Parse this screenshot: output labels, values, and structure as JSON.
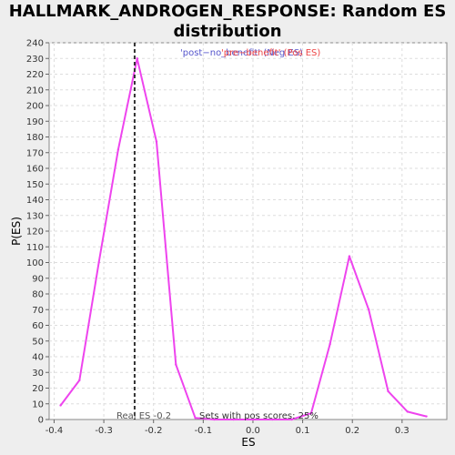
{
  "chart_data": {
    "type": "line",
    "title_line1": "HALLMARK_ANDROGEN_RESPONSE: Random ES",
    "title_line2": "distribution",
    "xlabel": "ES",
    "ylabel": "P(ES)",
    "xlim": [
      -0.41,
      0.39
    ],
    "ylim": [
      0,
      240
    ],
    "grid": true,
    "x_ticks": [
      -0.4,
      -0.3,
      -0.2,
      -0.1,
      0.0,
      0.1,
      0.2,
      0.3
    ],
    "x_tick_labels": [
      "-0.4",
      "-0.3",
      "-0.2",
      "-0.1",
      "0.0",
      "0.1",
      "0.2",
      "0.3"
    ],
    "y_ticks": [
      0,
      10,
      20,
      30,
      40,
      50,
      60,
      70,
      80,
      90,
      100,
      110,
      120,
      130,
      140,
      150,
      160,
      170,
      180,
      190,
      200,
      210,
      220,
      230,
      240
    ],
    "series": [
      {
        "color": "#ee44ee",
        "x": [
          -0.387,
          -0.349,
          -0.31,
          -0.271,
          -0.233,
          -0.194,
          -0.155,
          -0.116,
          -0.078,
          -0.039,
          0.0,
          0.039,
          0.078,
          0.117,
          0.155,
          0.194,
          0.233,
          0.272,
          0.311,
          0.349
        ],
        "y": [
          9,
          25,
          100,
          172,
          230,
          177,
          35,
          1,
          0,
          0,
          0,
          0,
          0,
          4,
          48,
          104,
          70,
          18,
          5,
          2
        ]
      }
    ],
    "real_es": {
      "value": -0.238,
      "label": "Real ES -0.2"
    },
    "legend": {
      "neg_text": "'post−no_benefit' (Neg ES)",
      "pos_text": "'pre−benefit' (Pos ES)",
      "neg_color": "#5555cc",
      "pos_color": "#ee4444"
    },
    "pos_score_text": "Sets with pos scores: 25%"
  }
}
